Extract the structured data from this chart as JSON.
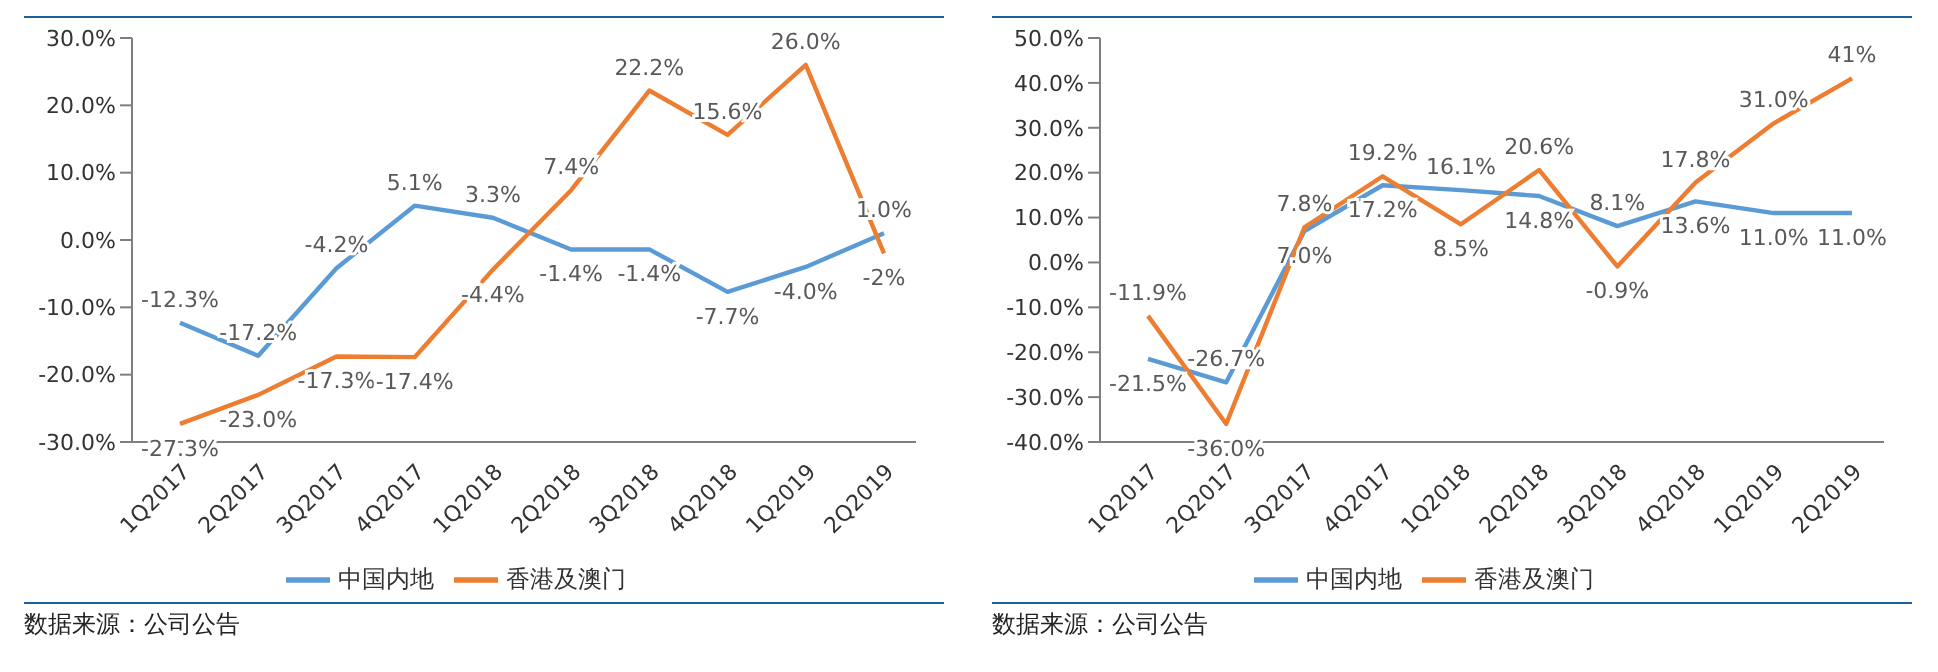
{
  "chart_data": [
    {
      "type": "line",
      "categories": [
        "1Q2017",
        "2Q2017",
        "3Q2017",
        "4Q2017",
        "1Q2018",
        "2Q2018",
        "3Q2018",
        "4Q2018",
        "1Q2019",
        "2Q2019"
      ],
      "series": [
        {
          "name": "中国内地",
          "color": "#5b9bd5",
          "values": [
            -12.3,
            -17.2,
            -4.2,
            5.1,
            3.3,
            -1.4,
            -1.4,
            -7.7,
            -4.0,
            1.0
          ],
          "value_labels": [
            "-12.3%",
            "-17.2%",
            "-4.2%",
            "5.1%",
            "3.3%",
            "-1.4%",
            "-1.4%",
            "-7.7%",
            "-4.0%",
            "1.0%"
          ]
        },
        {
          "name": "香港及澳门",
          "color": "#ed7d31",
          "values": [
            -27.3,
            -23.0,
            -17.3,
            -17.4,
            -4.4,
            7.4,
            22.2,
            15.6,
            26.0,
            -2
          ],
          "value_labels": [
            "-27.3%",
            "-23.0%",
            "-17.3%",
            "-17.4%",
            "-4.4%",
            "7.4%",
            "22.2%",
            "15.6%",
            "26.0%",
            "-2%"
          ]
        }
      ],
      "ylim": [
        -30,
        30
      ],
      "yticks": [
        {
          "value": -30,
          "label": "-30.0%"
        },
        {
          "value": -20,
          "label": "-20.0%"
        },
        {
          "value": -10,
          "label": "-10.0%"
        },
        {
          "value": 0,
          "label": "0.0%"
        },
        {
          "value": 10,
          "label": "10.0%"
        },
        {
          "value": 20,
          "label": "20.0%"
        },
        {
          "value": 30,
          "label": "30.0%"
        }
      ],
      "grid": false,
      "legend": "bottom",
      "marker": "none",
      "line_style": "solid",
      "annotations": [
        "数据来源：公司公告"
      ]
    },
    {
      "type": "line",
      "categories": [
        "1Q2017",
        "2Q2017",
        "3Q2017",
        "4Q2017",
        "1Q2018",
        "2Q2018",
        "3Q2018",
        "4Q2018",
        "1Q2019",
        "2Q2019"
      ],
      "series": [
        {
          "name": "中国内地",
          "color": "#5b9bd5",
          "values": [
            -21.5,
            -26.7,
            7.0,
            17.2,
            16.1,
            14.8,
            8.1,
            13.6,
            11.0,
            11.0
          ],
          "value_labels": [
            "-21.5%",
            "-26.7%",
            "7.0%",
            "17.2%",
            "16.1%",
            "14.8%",
            "8.1%",
            "13.6%",
            "11.0%",
            "11.0%"
          ]
        },
        {
          "name": "香港及澳门",
          "color": "#ed7d31",
          "values": [
            -11.9,
            -36.0,
            7.8,
            19.2,
            8.5,
            20.6,
            -0.9,
            17.8,
            31.0,
            41
          ],
          "value_labels": [
            "-11.9%",
            "-36.0%",
            "7.8%",
            "19.2%",
            "8.5%",
            "20.6%",
            "-0.9%",
            "17.8%",
            "31.0%",
            "41%"
          ]
        }
      ],
      "ylim": [
        -40,
        50
      ],
      "yticks": [
        {
          "value": -40,
          "label": "-40.0%"
        },
        {
          "value": -30,
          "label": "-30.0%"
        },
        {
          "value": -20,
          "label": "-20.0%"
        },
        {
          "value": -10,
          "label": "-10.0%"
        },
        {
          "value": 0,
          "label": "0.0%"
        },
        {
          "value": 10,
          "label": "10.0%"
        },
        {
          "value": 20,
          "label": "20.0%"
        },
        {
          "value": 30,
          "label": "30.0%"
        },
        {
          "value": 40,
          "label": "40.0%"
        },
        {
          "value": 50,
          "label": "50.0%"
        }
      ],
      "grid": false,
      "legend": "bottom",
      "marker": "none",
      "line_style": "solid",
      "annotations": [
        "数据来源：公司公告"
      ]
    }
  ]
}
